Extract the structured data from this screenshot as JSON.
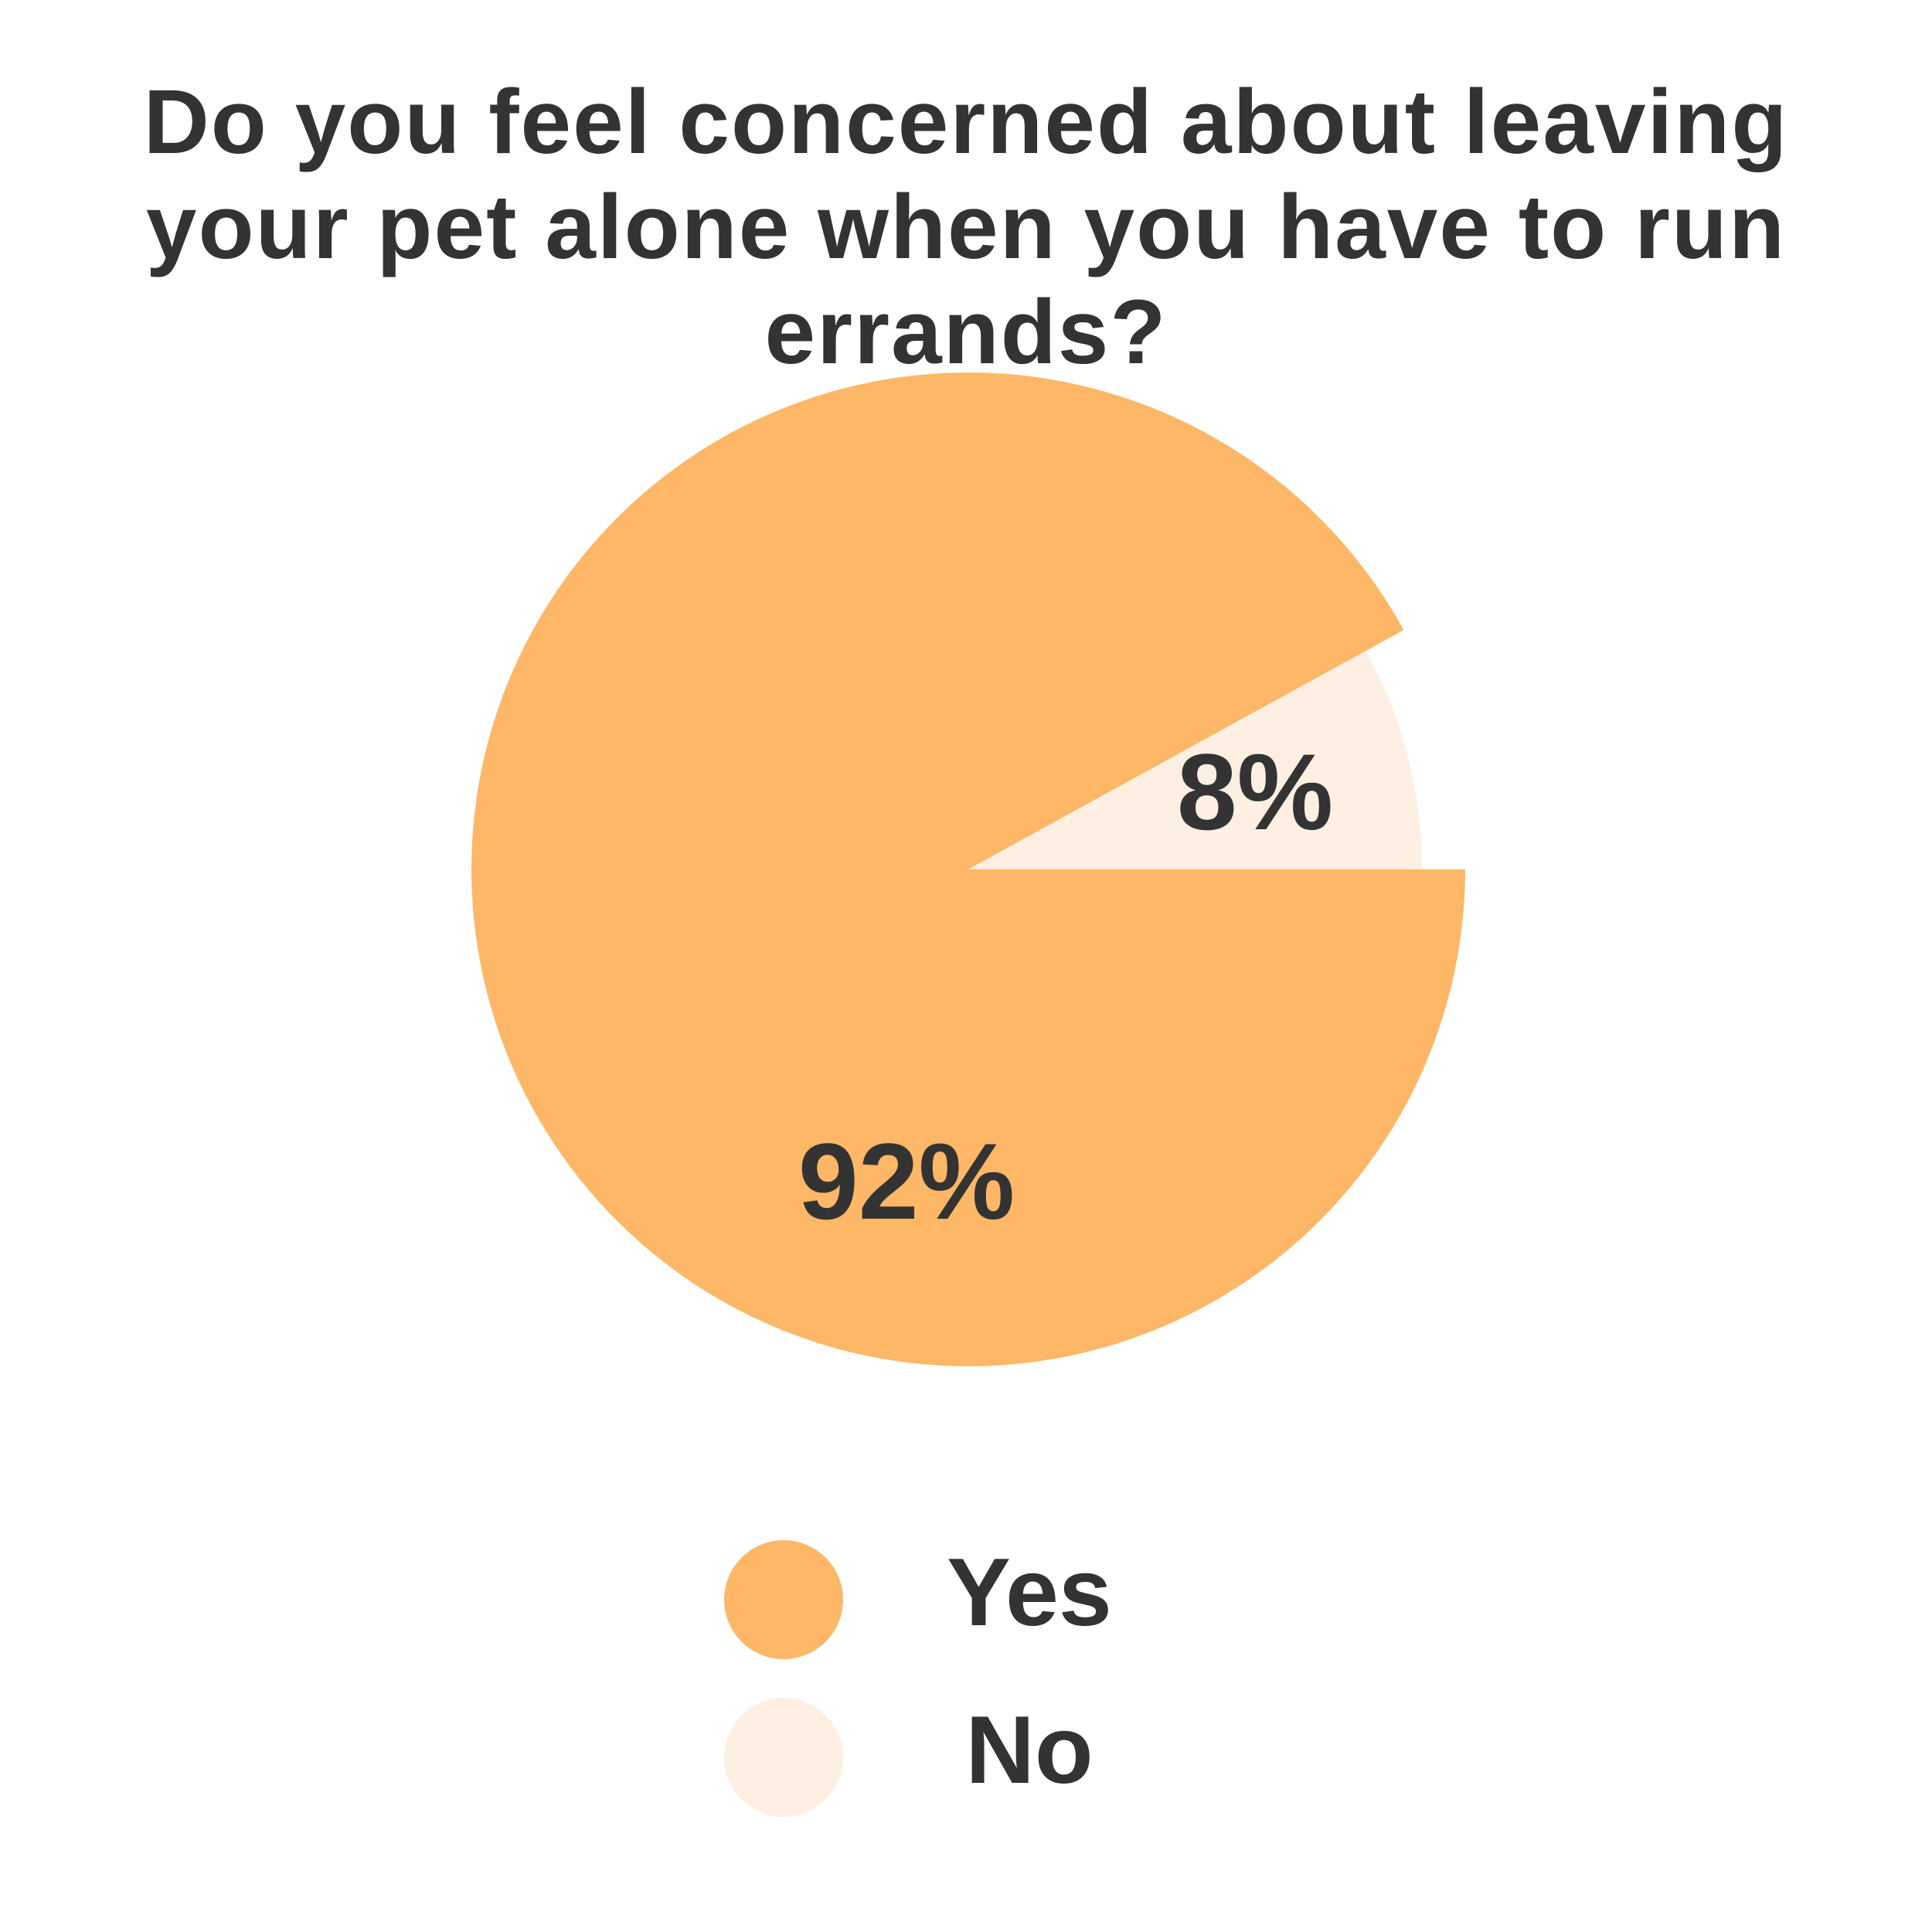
{
  "chart_data": {
    "type": "pie",
    "title": "Do you feel concerned about leaving your pet alone when you have to run errands?",
    "categories": [
      "Yes",
      "No"
    ],
    "values": [
      92,
      8
    ],
    "value_labels": [
      "92%",
      "8%"
    ],
    "colors": [
      "#fdb766",
      "#fdf0e2"
    ],
    "legend": "bottom"
  }
}
